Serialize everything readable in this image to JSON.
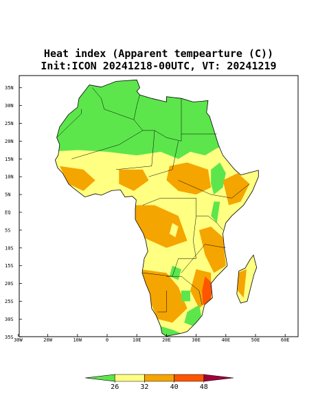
{
  "title": "Heat index (Apparent tempearture (C))",
  "subtitle": "Init:ICON 20241218-00UTC, VT: 20241219",
  "lat_labels": [
    "35N",
    "30N",
    "25N",
    "20N",
    "15N",
    "10N",
    "5N",
    "EQ",
    "5S",
    "10S",
    "15S",
    "20S",
    "25S",
    "30S",
    "35S"
  ],
  "lon_labels": [
    "30W",
    "20W",
    "10W",
    "0",
    "10E",
    "20E",
    "30E",
    "40E",
    "50E",
    "60E"
  ],
  "legend": {
    "ticks": [
      26,
      32,
      40,
      48
    ],
    "colors": [
      "#5ce64c",
      "#ffff82",
      "#f5a500",
      "#ff5500",
      "#a0003c"
    ]
  }
}
